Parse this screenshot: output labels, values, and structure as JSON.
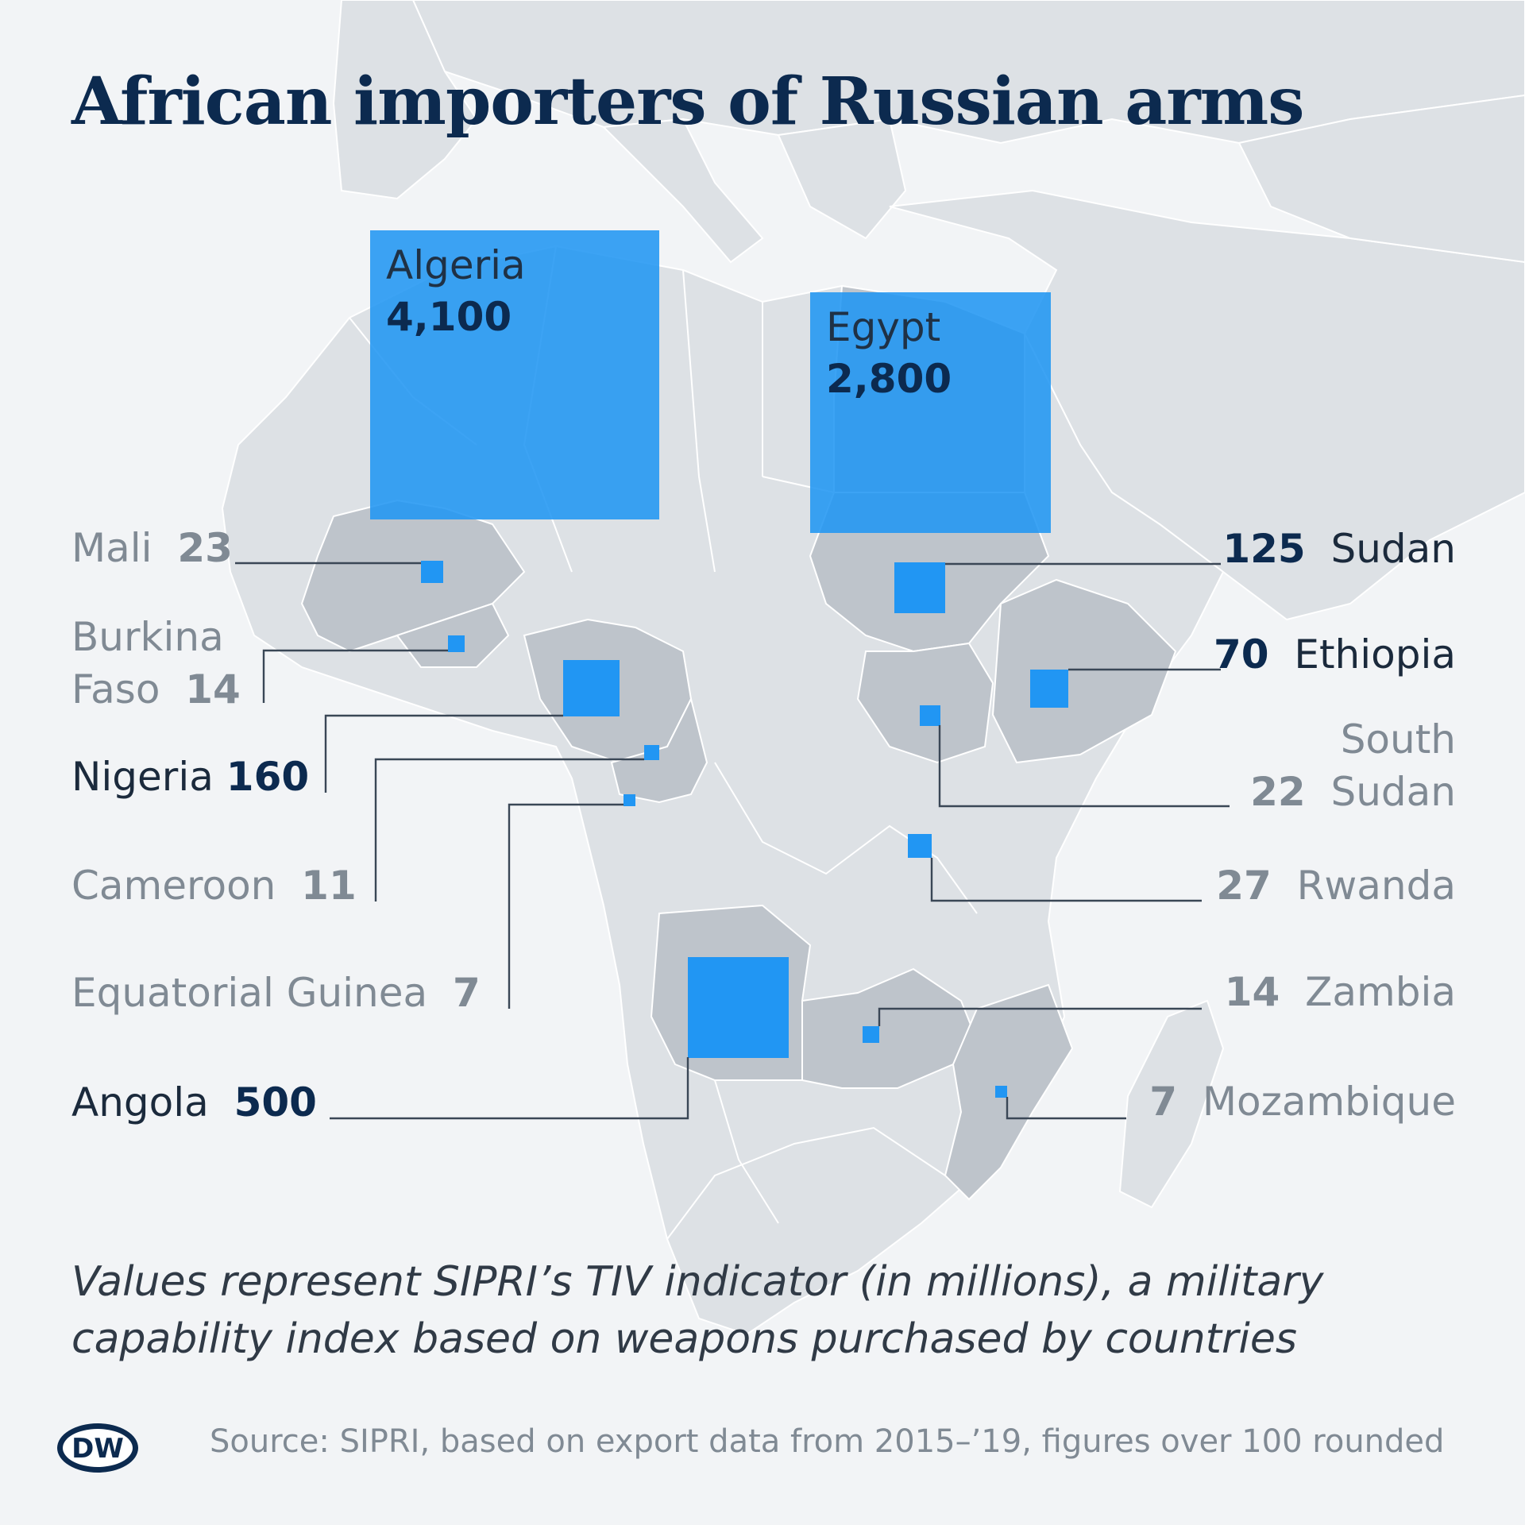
{
  "title": "African importers of Russian arms",
  "note": "Values represent SIPRI’s TIV indicator (in millions), a military capability index based on weapons purchased by countries",
  "source": "Source: SIPRI, based on export data from 2015–’19, figures over 100 rounded",
  "logo": {
    "icon": "dw-logo-icon",
    "text": "DW"
  },
  "colors": {
    "background": "#f2f4f6",
    "land": "#dde1e5",
    "importer_land": "#bec4cb",
    "square": "#2196f3",
    "title": "#0c2a4f",
    "label_gray": "#808a94"
  },
  "countries": {
    "algeria": {
      "name": "Algeria",
      "value": "4,100",
      "tiv": 4100
    },
    "egypt": {
      "name": "Egypt",
      "value": "2,800",
      "tiv": 2800
    },
    "mali": {
      "name": "Mali",
      "value": "23",
      "tiv": 23
    },
    "burkina_faso": {
      "name_line1": "Burkina",
      "name_line2": "Faso",
      "value": "14",
      "tiv": 14
    },
    "nigeria": {
      "name": "Nigeria",
      "value": "160",
      "tiv": 160
    },
    "cameroon": {
      "name": "Cameroon",
      "value": "11",
      "tiv": 11
    },
    "eq_guinea": {
      "name": "Equatorial Guinea",
      "value": "7",
      "tiv": 7
    },
    "angola": {
      "name": "Angola",
      "value": "500",
      "tiv": 500
    },
    "sudan": {
      "name": "Sudan",
      "value": "125",
      "tiv": 125
    },
    "ethiopia": {
      "name": "Ethiopia",
      "value": "70",
      "tiv": 70
    },
    "south_sudan": {
      "name_line1": "South",
      "name_line2": "Sudan",
      "value": "22",
      "tiv": 22
    },
    "rwanda": {
      "name": "Rwanda",
      "value": "27",
      "tiv": 27
    },
    "zambia": {
      "name": "Zambia",
      "value": "14",
      "tiv": 14
    },
    "mozambique": {
      "name": "Mozambique",
      "value": "7",
      "tiv": 7
    }
  }
}
